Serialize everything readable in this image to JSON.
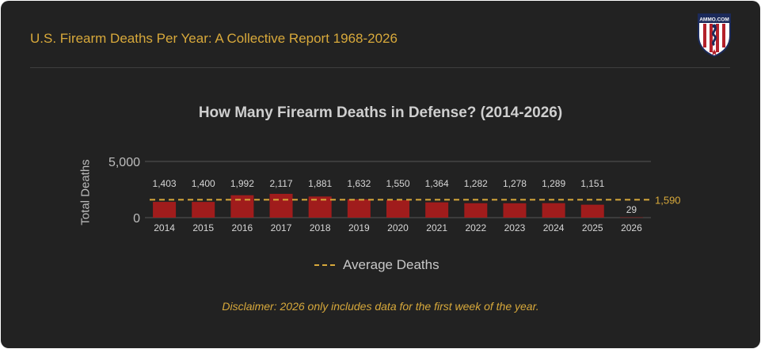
{
  "header": {
    "title": "U.S. Firearm Deaths Per Year: A Collective Report 1968-2026",
    "logo_text": "AMMO.COM"
  },
  "colors": {
    "background": "#222222",
    "accent": "#d8a93b",
    "bar": "#a01c1c",
    "text": "#cfcfcf"
  },
  "chart_data": {
    "type": "bar",
    "title": "How Many Firearm Deaths in Defense? (2014-2026)",
    "xlabel": "",
    "ylabel": "Total Deaths",
    "categories": [
      "2014",
      "2015",
      "2016",
      "2017",
      "2018",
      "2019",
      "2020",
      "2021",
      "2022",
      "2023",
      "2024",
      "2025",
      "2026"
    ],
    "values": [
      1403,
      1400,
      1992,
      2117,
      1881,
      1632,
      1550,
      1364,
      1282,
      1278,
      1289,
      1151,
      29
    ],
    "value_labels": [
      "1,403",
      "1,400",
      "1,992",
      "2,117",
      "1,881",
      "1,632",
      "1,550",
      "1,364",
      "1,282",
      "1,278",
      "1,289",
      "1,151",
      "29"
    ],
    "ylim": [
      0,
      5000
    ],
    "yticks": [
      0,
      5000
    ],
    "ytick_labels": [
      "0",
      "5,000"
    ],
    "average": {
      "name": "Average Deaths",
      "value": 1590,
      "label": "1,590"
    },
    "grid": true,
    "legend": "bottom-center"
  },
  "footer": {
    "disclaimer": "Disclaimer: 2026 only includes data for the first week of the year."
  }
}
